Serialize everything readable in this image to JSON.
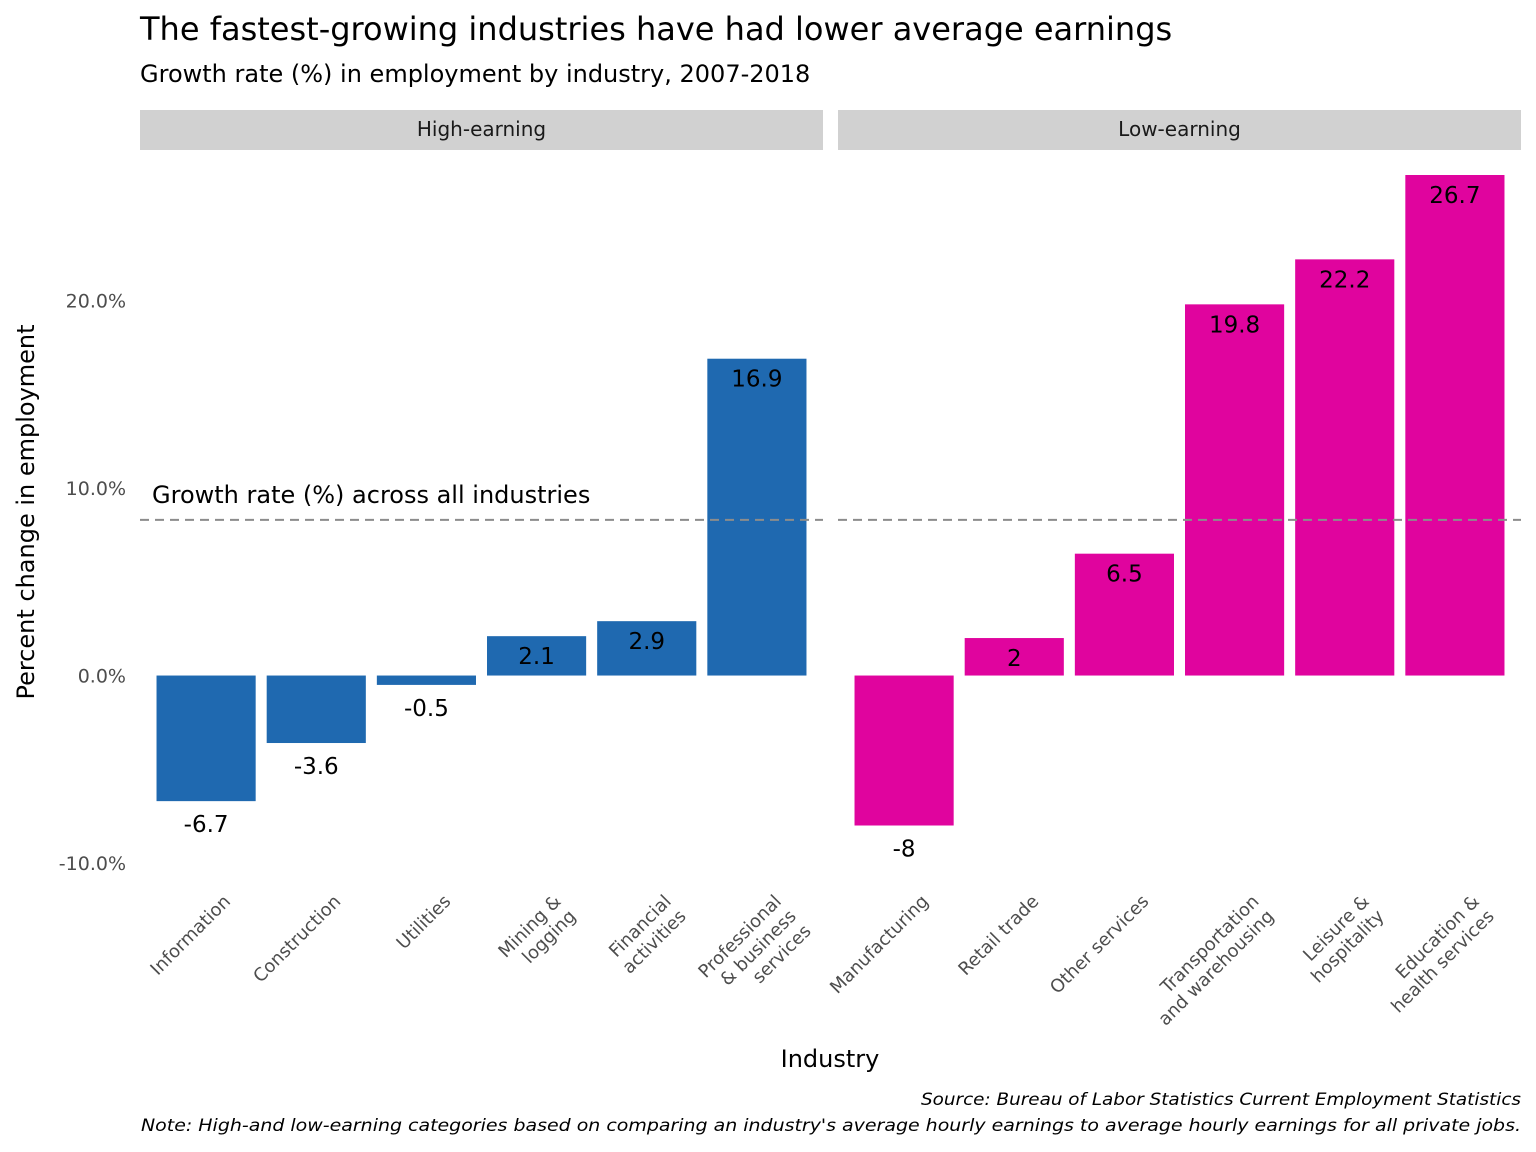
{
  "chart_data": {
    "type": "bar",
    "title": "The fastest-growing industries have had lower average earnings",
    "subtitle": "Growth rate (%) in employment by industry, 2007-2018",
    "xlabel": "Industry",
    "ylabel": "Percent change in employment",
    "ylim": [
      -10.8,
      27.5
    ],
    "yticks": [
      -10,
      0,
      10,
      20
    ],
    "ytick_labels": [
      "-10.0%",
      "0.0%",
      "10.0%",
      "20.0%"
    ],
    "grid": false,
    "legend": "none",
    "reference_line": {
      "value": 8.3,
      "label": "Growth rate (%) across all industries",
      "style": "dashed",
      "color": "#8c8c8c"
    },
    "facets": [
      {
        "name": "High-earning",
        "color": "#1f69b0",
        "categories": [
          [
            "Information"
          ],
          [
            "Construction"
          ],
          [
            "Utilities"
          ],
          [
            "Mining &",
            "logging"
          ],
          [
            "Financial",
            "activities"
          ],
          [
            "Professional",
            "& business",
            "services"
          ]
        ],
        "values": [
          -6.7,
          -3.6,
          -0.5,
          2.1,
          2.9,
          16.9
        ],
        "value_labels": [
          "-6.7",
          "-3.6",
          "-0.5",
          "2.1",
          "2.9",
          "16.9"
        ]
      },
      {
        "name": "Low-earning",
        "color": "#e0049e",
        "categories": [
          [
            "Manufacturing"
          ],
          [
            "Retail trade"
          ],
          [
            "Other services"
          ],
          [
            "Transportation",
            "and warehousing"
          ],
          [
            "Leisure &",
            "hospitality"
          ],
          [
            "Education &",
            "health services"
          ]
        ],
        "values": [
          -8,
          2,
          6.5,
          19.8,
          22.2,
          26.7
        ],
        "value_labels": [
          "-8",
          "2",
          "6.5",
          "19.8",
          "22.2",
          "26.7"
        ]
      }
    ],
    "caption_lines": [
      "Source: Bureau of Labor Statistics Current Employment Statistics",
      "Note: High-and low-earning categories based on comparing an industry's average hourly earnings to average hourly earnings for all private jobs."
    ]
  },
  "colors": {
    "strip_background": "#d1d1d1",
    "tick_text": "#4d4d4d"
  }
}
